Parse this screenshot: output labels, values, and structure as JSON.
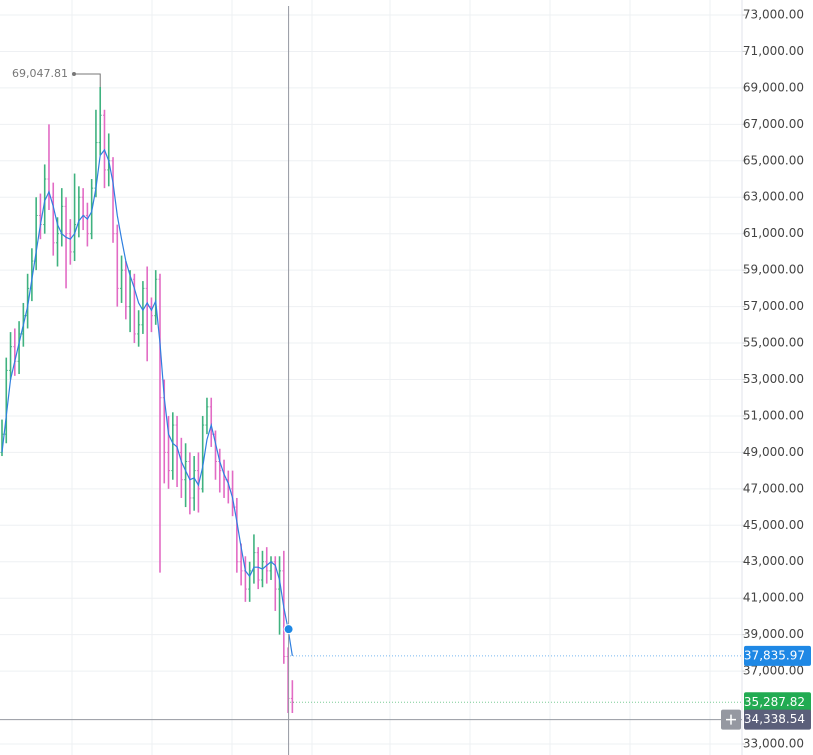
{
  "chart_data": {
    "type": "ohlc",
    "ylim": [
      32396,
      73823
    ],
    "yticks": [
      {
        "value": 73000,
        "label": "73,000.00"
      },
      {
        "value": 71000,
        "label": "71,000.00"
      },
      {
        "value": 69000,
        "label": "69,000.00"
      },
      {
        "value": 67000,
        "label": "67,000.00"
      },
      {
        "value": 65000,
        "label": "65,000.00"
      },
      {
        "value": 63000,
        "label": "63,000.00"
      },
      {
        "value": 61000,
        "label": "61,000.00"
      },
      {
        "value": 59000,
        "label": "59,000.00"
      },
      {
        "value": 57000,
        "label": "57,000.00"
      },
      {
        "value": 55000,
        "label": "55,000.00"
      },
      {
        "value": 53000,
        "label": "53,000.00"
      },
      {
        "value": 51000,
        "label": "51,000.00"
      },
      {
        "value": 49000,
        "label": "49,000.00"
      },
      {
        "value": 47000,
        "label": "47,000.00"
      },
      {
        "value": 45000,
        "label": "45,000.00"
      },
      {
        "value": 43000,
        "label": "43,000.00"
      },
      {
        "value": 41000,
        "label": "41,000.00"
      },
      {
        "value": 39000,
        "label": "39,000.00"
      },
      {
        "value": 37000,
        "label": "37,000.00"
      },
      {
        "value": 33000,
        "label": "33,000.00"
      }
    ],
    "grid": true,
    "up_color": "#3fb27f",
    "down_color": "#e26bc4",
    "open": [
      49000,
      50000,
      53500,
      54800,
      54000,
      55500,
      56500,
      58000,
      59500,
      62000,
      61500,
      64000,
      63000,
      60500,
      61000,
      62500,
      61000,
      60000,
      61500,
      63000,
      62000,
      61000,
      63500,
      66000,
      67500,
      64500,
      65000,
      61000,
      58000,
      59000,
      57000,
      58500,
      55500,
      56000,
      58000,
      57000,
      56500,
      58500,
      52000,
      49000,
      48000,
      50500,
      49000,
      47500,
      48500,
      46500,
      48000,
      47000,
      50500,
      51500,
      50000,
      48500,
      48000,
      47500,
      47000,
      46000,
      43000,
      42500,
      41500,
      42500,
      43500,
      42000,
      43000,
      42500,
      43000,
      41500,
      42500,
      37800,
      35500
    ],
    "high": [
      50800,
      54200,
      55600,
      55800,
      56200,
      57200,
      58800,
      60200,
      63000,
      63200,
      64800,
      67000,
      63800,
      61900,
      63500,
      63000,
      61800,
      64300,
      63600,
      63500,
      62700,
      64000,
      67800,
      69047.81,
      67800,
      66500,
      65200,
      61500,
      59800,
      59500,
      59000,
      58800,
      56800,
      58400,
      59200,
      57500,
      59000,
      58800,
      53000,
      51000,
      51200,
      51000,
      49800,
      49500,
      49000,
      48800,
      49000,
      51000,
      52000,
      52000,
      50200,
      49200,
      48600,
      48000,
      48000,
      46500,
      44000,
      43300,
      43000,
      44500,
      43800,
      43600,
      43800,
      43300,
      43300,
      43300,
      43600,
      38300,
      36500
    ],
    "low": [
      48800,
      49500,
      53000,
      53200,
      53300,
      54800,
      55800,
      57300,
      59000,
      60700,
      61000,
      62300,
      59800,
      59200,
      60300,
      58000,
      59300,
      59500,
      60800,
      61200,
      60300,
      60700,
      63000,
      65300,
      63500,
      63600,
      60500,
      57000,
      57200,
      56300,
      55600,
      55000,
      54800,
      55500,
      54000,
      55600,
      56000,
      42400,
      47300,
      47000,
      47500,
      47100,
      46500,
      46000,
      45600,
      45800,
      45700,
      46800,
      50000,
      49300,
      47500,
      46800,
      46500,
      46200,
      45500,
      42400,
      41700,
      40800,
      40800,
      41800,
      41500,
      41600,
      41800,
      42000,
      40300,
      39000,
      37400,
      34700,
      34700
    ],
    "close": [
      50000,
      53500,
      54800,
      54000,
      55500,
      56500,
      58000,
      59500,
      62000,
      61500,
      64000,
      63000,
      60500,
      61000,
      62500,
      61000,
      60000,
      61500,
      63000,
      62000,
      61000,
      63500,
      66000,
      67500,
      64500,
      65000,
      61000,
      58000,
      59000,
      57000,
      58500,
      55500,
      56000,
      58000,
      57000,
      56500,
      58500,
      52000,
      49000,
      48000,
      50500,
      49000,
      47500,
      48500,
      46500,
      48000,
      47000,
      50500,
      51500,
      50000,
      48500,
      48000,
      47500,
      47000,
      46000,
      43000,
      42500,
      41500,
      42500,
      43500,
      42000,
      43000,
      42500,
      43000,
      41500,
      42500,
      37800,
      35500,
      35287.82
    ],
    "ma": {
      "color": "#2f7fe0",
      "values": [
        49000,
        51000,
        53000,
        54000,
        55000,
        56000,
        57000,
        58500,
        60000,
        61500,
        62800,
        63300,
        62500,
        61500,
        61000,
        60800,
        60700,
        61000,
        61700,
        62000,
        61800,
        62200,
        63500,
        65300,
        65600,
        65000,
        63800,
        62000,
        60700,
        59500,
        58700,
        58000,
        57200,
        56800,
        57200,
        56800,
        57300,
        55000,
        52000,
        50000,
        49500,
        49300,
        48500,
        48000,
        47500,
        47600,
        47200,
        48200,
        49700,
        50500,
        49500,
        48500,
        47800,
        47300,
        46500,
        45200,
        43800,
        42500,
        42200,
        42700,
        42700,
        42600,
        42800,
        43000,
        42800,
        42000,
        40500,
        39300,
        37835.97
      ]
    },
    "high_label": {
      "value": 69047.81,
      "label": "69,047.81"
    },
    "ma_last": {
      "value": 37835.97,
      "label": "37,835.97",
      "color": "#1e88e5"
    },
    "last_price": {
      "value": 35287.82,
      "label": "35,287.82",
      "color": "#22ab52"
    },
    "crosshair": {
      "value": 34338.54,
      "label": "34,338.54",
      "color": "#5b5f7a"
    }
  }
}
